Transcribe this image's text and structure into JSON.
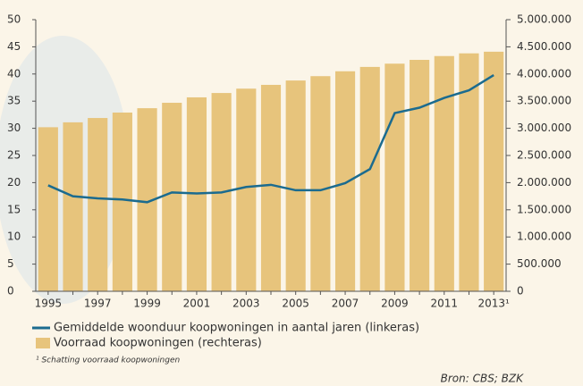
{
  "chart_data": {
    "type": "bar_line",
    "categories": [
      "1995",
      null,
      "1997",
      null,
      "1999",
      null,
      "2001",
      null,
      "2003",
      null,
      "2005",
      null,
      "2007",
      null,
      "2009",
      null,
      "2011",
      null,
      "2013¹"
    ],
    "series": [
      {
        "name": "Voorraad koopwoningen (rechteras)",
        "type": "bar",
        "axis": "y2",
        "color": "#e7c47c",
        "values": [
          3020000,
          3110000,
          3190000,
          3290000,
          3370000,
          3470000,
          3570000,
          3650000,
          3730000,
          3800000,
          3880000,
          3960000,
          4050000,
          4130000,
          4190000,
          4260000,
          4330000,
          4380000,
          4410000
        ]
      },
      {
        "name": "Gemiddelde woonduur koopwoningen in aantal jaren (linkeras)",
        "type": "line",
        "axis": "y",
        "color": "#1b6b8f",
        "values": [
          19.5,
          17.5,
          17.1,
          16.9,
          16.4,
          18.2,
          18.0,
          18.2,
          19.2,
          19.6,
          18.6,
          18.6,
          19.9,
          22.5,
          32.8,
          33.8,
          35.6,
          37.0,
          39.8
        ]
      }
    ],
    "ylim": [
      0,
      50
    ],
    "yticks": [
      0,
      5,
      10,
      15,
      20,
      25,
      30,
      35,
      40,
      45,
      50
    ],
    "y2lim": [
      0,
      5000000
    ],
    "y2ticks": [
      0,
      {
        "value": 500000,
        "label": "500.000"
      },
      {
        "value": 1000000,
        "label": "1.000.000"
      },
      {
        "value": 1500000,
        "label": "1.500.000"
      },
      {
        "value": 2000000,
        "label": "2.000.000"
      },
      {
        "value": 2500000,
        "label": "2.500.000"
      },
      {
        "value": 3000000,
        "label": "3.000.000"
      },
      {
        "value": 3500000,
        "label": "3.500.000"
      },
      {
        "value": 4000000,
        "label": "4.000.000"
      },
      {
        "value": 4500000,
        "label": "4.500.000"
      },
      {
        "value": 5000000,
        "label": "5.000.000"
      }
    ],
    "footnote": "¹ Schatting voorraad koopwoningen",
    "source": "Bron: CBS; BZK"
  }
}
